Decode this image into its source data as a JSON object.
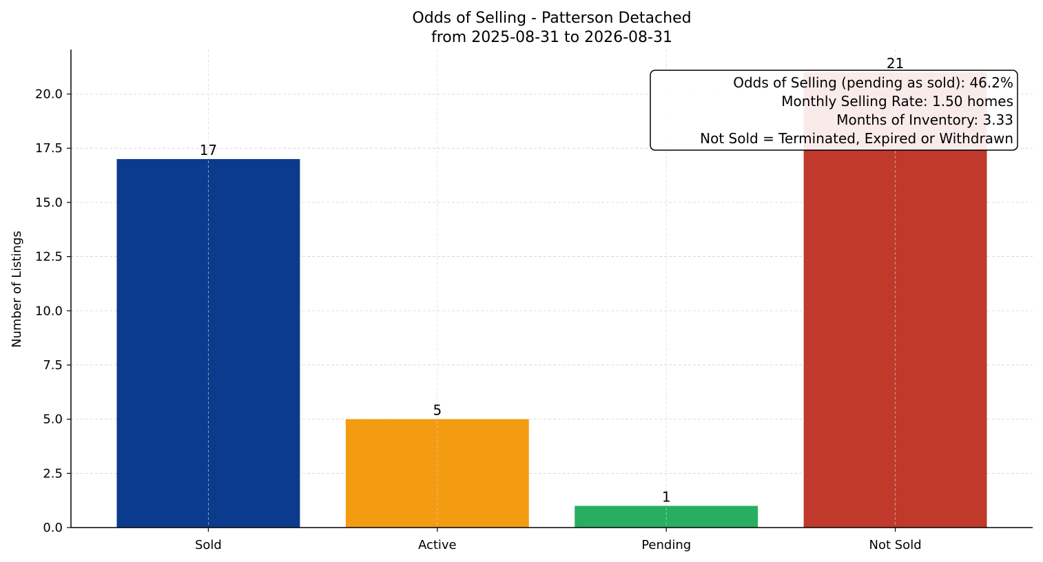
{
  "chart_data": {
    "type": "bar",
    "title": "Odds of Selling - Patterson Detached",
    "subtitle": "from 2025-08-31 to 2026-08-31",
    "xlabel": "",
    "ylabel": "Number of Listings",
    "categories": [
      "Sold",
      "Active",
      "Pending",
      "Not Sold"
    ],
    "values": [
      17,
      5,
      1,
      21
    ],
    "value_labels": [
      "17",
      "5",
      "1",
      "21"
    ],
    "colors": [
      "#0b3b8c",
      "#f39c12",
      "#27ae60",
      "#c0392b"
    ],
    "ylim": [
      0,
      22.05
    ],
    "yticks": [
      0,
      2.5,
      5,
      7.5,
      10,
      12.5,
      15,
      17.5,
      20
    ],
    "ytick_labels": [
      "0.0",
      "2.5",
      "5.0",
      "7.5",
      "10.0",
      "12.5",
      "15.0",
      "17.5",
      "20.0"
    ],
    "grid": true,
    "annotation": [
      "Odds of Selling (pending as sold): 46.2%",
      "Monthly Selling Rate: 1.50 homes",
      "Months of Inventory: 3.33",
      "Not Sold = Terminated, Expired or Withdrawn"
    ],
    "annotation_placement": "top-right"
  }
}
